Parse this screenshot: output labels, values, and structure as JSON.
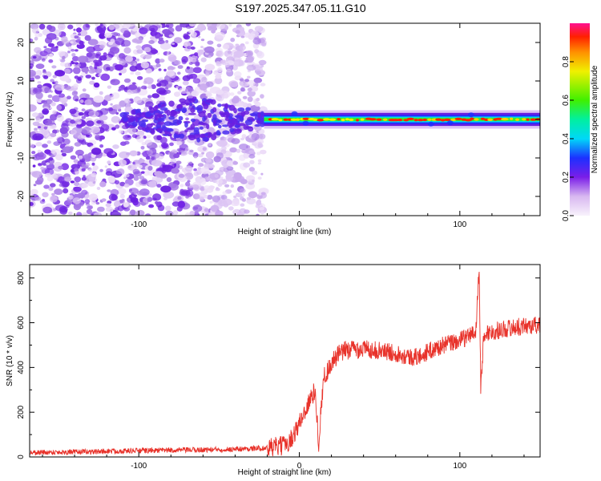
{
  "title": "S197.2025.347.05.11.G10",
  "colors": {
    "line": "#e8322a",
    "axis": "#000000",
    "background": "#ffffff"
  },
  "chart_data": [
    {
      "type": "heatmap",
      "xlabel": "Height of straight line (km)",
      "ylabel": "Frequency (Hz)",
      "xlim": [
        -168,
        150
      ],
      "ylim": [
        -25,
        25
      ],
      "xticks": [
        -100,
        0,
        100
      ],
      "yticks": [
        -20,
        -10,
        0,
        10,
        20
      ],
      "colorbar": {
        "label": "Normalized spectral amplitude",
        "range": [
          0,
          1
        ],
        "ticks": [
          0.0,
          0.2,
          0.4,
          0.6,
          0.8
        ],
        "colormap": "rainbow"
      },
      "features": [
        {
          "name": "noise",
          "x_range": [
            -168,
            -22
          ],
          "freq_range": [
            -25,
            25
          ],
          "amplitude": 0.1
        },
        {
          "name": "carrier",
          "x_range": [
            -22,
            150
          ],
          "freq_center": 0,
          "freq_halfwidth": 1.2,
          "amplitude_peak": 1.0
        }
      ]
    },
    {
      "type": "line",
      "xlabel": "Height of straight line (km)",
      "ylabel": "SNR (10 * v/v)",
      "xlim": [
        -168,
        150
      ],
      "ylim": [
        0,
        860
      ],
      "xticks": [
        -100,
        0,
        100
      ],
      "yticks": [
        0,
        200,
        400,
        600,
        800
      ],
      "series": [
        {
          "color": "#e8322a",
          "x": [
            -168,
            -140,
            -120,
            -100,
            -80,
            -60,
            -40,
            -20,
            -10,
            -5,
            0,
            5,
            10,
            12,
            15,
            20,
            25,
            30,
            40,
            50,
            60,
            70,
            75,
            80,
            90,
            100,
            105,
            110,
            112,
            113,
            115,
            120,
            130,
            140,
            150
          ],
          "y": [
            20,
            22,
            25,
            28,
            30,
            32,
            35,
            40,
            50,
            80,
            150,
            230,
            300,
            60,
            350,
            420,
            460,
            480,
            485,
            475,
            465,
            445,
            450,
            470,
            500,
            520,
            540,
            560,
            860,
            310,
            550,
            560,
            575,
            585,
            590
          ]
        }
      ]
    }
  ]
}
